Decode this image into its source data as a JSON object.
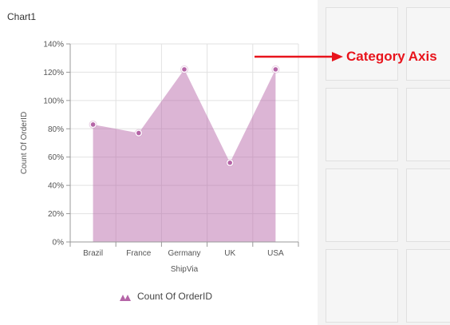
{
  "panel": {
    "title": "Chart1"
  },
  "annotation": {
    "text": "Category Axis",
    "color": "#e8141c"
  },
  "chart_data": {
    "type": "area",
    "categories": [
      "Brazil",
      "France",
      "Germany",
      "UK",
      "USA"
    ],
    "series": [
      {
        "name": "Count Of OrderID",
        "values": [
          83,
          77,
          122,
          56,
          122
        ],
        "color": "#b565a7"
      }
    ],
    "xlabel": "ShipVia",
    "ylabel": "Count Of OrderID",
    "ylim": [
      0,
      140
    ],
    "yticks": [
      "0%",
      "20%",
      "40%",
      "60%",
      "80%",
      "100%",
      "120%",
      "140%"
    ],
    "grid": true,
    "legend_position": "bottom"
  }
}
